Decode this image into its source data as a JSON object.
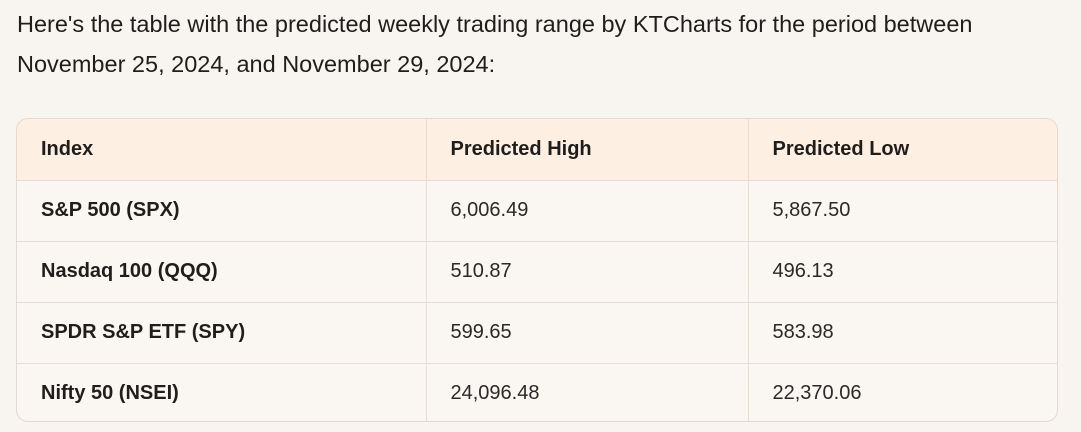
{
  "message": {
    "intro_text": "Here's the table with the predicted weekly trading range by KTCharts for the period between November 25, 2024, and November 29, 2024:"
  },
  "table": {
    "headers": [
      "Index",
      "Predicted High",
      "Predicted Low"
    ],
    "rows": [
      {
        "index": "S&P 500 (SPX)",
        "high": "6,006.49",
        "low": "5,867.50"
      },
      {
        "index": "Nasdaq 100 (QQQ)",
        "high": "510.87",
        "low": "496.13"
      },
      {
        "index": "SPDR S&P ETF (SPY)",
        "high": "599.65",
        "low": "583.98"
      },
      {
        "index": "Nifty 50 (NSEI)",
        "high": "24,096.48",
        "low": "22,370.06"
      }
    ]
  }
}
